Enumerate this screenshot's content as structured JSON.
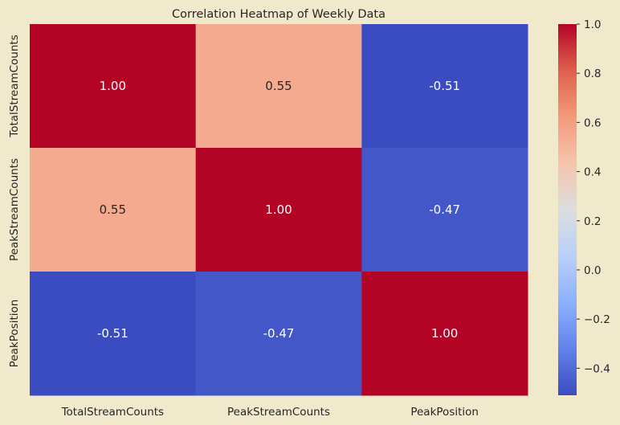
{
  "chart_data": {
    "type": "heatmap",
    "title": "Correlation Heatmap of Weekly Data",
    "xlabel": "",
    "ylabel": "",
    "x_categories": [
      "TotalStreamCounts",
      "PeakStreamCounts",
      "PeakPosition"
    ],
    "y_categories": [
      "TotalStreamCounts",
      "PeakStreamCounts",
      "PeakPosition"
    ],
    "values": [
      [
        1.0,
        0.55,
        -0.51
      ],
      [
        0.55,
        1.0,
        -0.47
      ],
      [
        -0.51,
        -0.47,
        1.0
      ]
    ],
    "cell_labels": [
      [
        "1.00",
        "0.55",
        "-0.51"
      ],
      [
        "0.55",
        "1.00",
        "-0.47"
      ],
      [
        "-0.51",
        "-0.47",
        "1.00"
      ]
    ],
    "colormap": "coolwarm",
    "colorbar": {
      "vmin": -0.51,
      "vmax": 1.0,
      "ticks": [
        -0.4,
        -0.2,
        0.0,
        0.2,
        0.4,
        0.6,
        0.8,
        1.0
      ],
      "tick_labels": [
        "−0.4",
        "−0.2",
        "0.0",
        "0.2",
        "0.4",
        "0.6",
        "0.8",
        "1.0"
      ]
    },
    "colors": {
      "background": "#f0e9cc",
      "dark_text": "#262626",
      "light_text": "#ffffff"
    }
  }
}
